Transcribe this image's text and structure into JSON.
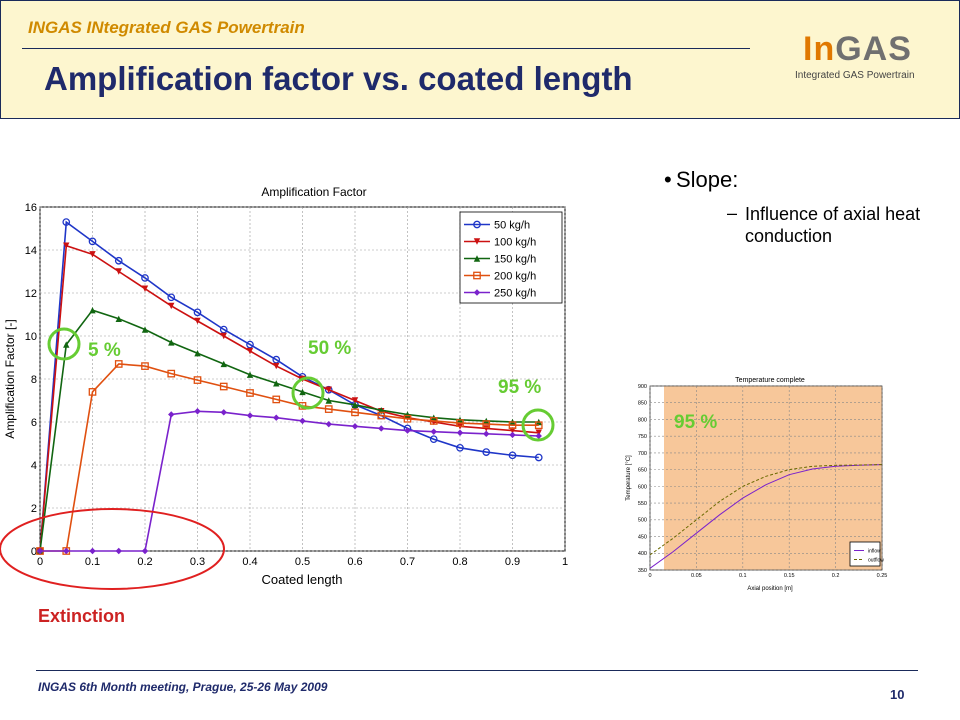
{
  "header": {
    "project": "INGAS INtegrated GAS Powertrain",
    "title": "Amplification factor vs. coated length",
    "logo_in": "In",
    "logo_gas": "GAS",
    "logo_sub": "Integrated GAS Powertrain"
  },
  "bullets": {
    "main": "Slope:",
    "sub": "Influence of axial heat conduction"
  },
  "annotations": {
    "five": "5 %",
    "fifty": "50 %",
    "ninetyfive": "95 %",
    "inset_ninetyfive": "95 %",
    "extinction": "Extinction"
  },
  "footer": {
    "meeting": "INGAS 6th Month meeting, Prague, 25-26 May 2009",
    "page": "10"
  },
  "colors": {
    "title": "#1f2a6b",
    "accent_green": "#66cc33",
    "extinction_red": "#cc2222",
    "inset_bg": "#f7c79a"
  },
  "chart_data": [
    {
      "type": "line",
      "title": "Amplification Factor",
      "xlabel": "Coated length",
      "ylabel": "Amplification Factor [-]",
      "xlim": [
        0,
        1
      ],
      "ylim": [
        0,
        16
      ],
      "xticks": [
        "0",
        "0.1",
        "0.2",
        "0.3",
        "0.4",
        "0.5",
        "0.6",
        "0.7",
        "0.8",
        "0.9",
        "1"
      ],
      "yticks": [
        "0",
        "2",
        "4",
        "6",
        "8",
        "10",
        "12",
        "14",
        "16"
      ],
      "grid": true,
      "legend": "top-right",
      "series": [
        {
          "name": "50 kg/h",
          "color": "#1f36c8",
          "marker": "circle",
          "x": [
            0,
            0.05,
            0.1,
            0.15,
            0.2,
            0.25,
            0.3,
            0.35,
            0.4,
            0.45,
            0.5,
            0.55,
            0.6,
            0.65,
            0.7,
            0.75,
            0.8,
            0.85,
            0.9,
            0.95
          ],
          "y": [
            0,
            15.3,
            14.4,
            13.5,
            12.7,
            11.8,
            11.1,
            10.3,
            9.6,
            8.9,
            8.1,
            7.5,
            6.8,
            6.3,
            5.7,
            5.2,
            4.8,
            4.6,
            4.45,
            4.35
          ]
        },
        {
          "name": "100 kg/h",
          "color": "#cc1111",
          "marker": "triangle-down",
          "x": [
            0,
            0.05,
            0.1,
            0.15,
            0.2,
            0.25,
            0.3,
            0.35,
            0.4,
            0.45,
            0.5,
            0.55,
            0.6,
            0.65,
            0.7,
            0.75,
            0.8,
            0.85,
            0.9,
            0.95
          ],
          "y": [
            0,
            14.2,
            13.8,
            13.0,
            12.2,
            11.4,
            10.7,
            10.0,
            9.3,
            8.6,
            8.0,
            7.5,
            7.0,
            6.5,
            6.2,
            6.0,
            5.8,
            5.7,
            5.6,
            5.5
          ]
        },
        {
          "name": "150 kg/h",
          "color": "#116611",
          "marker": "triangle-up",
          "x": [
            0,
            0.05,
            0.1,
            0.15,
            0.2,
            0.25,
            0.3,
            0.35,
            0.4,
            0.45,
            0.5,
            0.55,
            0.6,
            0.65,
            0.7,
            0.75,
            0.8,
            0.85,
            0.9,
            0.95
          ],
          "y": [
            0,
            9.6,
            11.2,
            10.8,
            10.3,
            9.7,
            9.2,
            8.7,
            8.2,
            7.8,
            7.4,
            7.0,
            6.8,
            6.55,
            6.35,
            6.2,
            6.1,
            6.05,
            6.0,
            6.0
          ]
        },
        {
          "name": "200 kg/h",
          "color": "#e05010",
          "marker": "square",
          "x": [
            0,
            0.05,
            0.1,
            0.15,
            0.2,
            0.25,
            0.3,
            0.35,
            0.4,
            0.45,
            0.5,
            0.55,
            0.6,
            0.65,
            0.7,
            0.75,
            0.8,
            0.85,
            0.9,
            0.95
          ],
          "y": [
            0,
            0,
            7.4,
            8.7,
            8.6,
            8.25,
            7.95,
            7.65,
            7.35,
            7.05,
            6.75,
            6.6,
            6.45,
            6.3,
            6.15,
            6.05,
            5.95,
            5.9,
            5.85,
            5.85
          ]
        },
        {
          "name": "250 kg/h",
          "color": "#7a22cc",
          "marker": "diamond",
          "x": [
            0,
            0.05,
            0.1,
            0.15,
            0.2,
            0.25,
            0.3,
            0.35,
            0.4,
            0.45,
            0.5,
            0.55,
            0.6,
            0.65,
            0.7,
            0.75,
            0.8,
            0.85,
            0.9,
            0.95
          ],
          "y": [
            0,
            0,
            0,
            0,
            0,
            6.35,
            6.5,
            6.45,
            6.3,
            6.2,
            6.05,
            5.9,
            5.8,
            5.7,
            5.6,
            5.55,
            5.5,
            5.45,
            5.4,
            5.35
          ]
        }
      ]
    },
    {
      "type": "line",
      "title": "Temperature complete",
      "xlabel": "Axial position [m]",
      "ylabel": "Temperature [°C]",
      "xlim": [
        0,
        0.25
      ],
      "ylim": [
        350,
        900
      ],
      "xticks": [
        "0",
        "0.05",
        "0.1",
        "0.15",
        "0.2",
        "0.25"
      ],
      "yticks": [
        "350",
        "400",
        "450",
        "500",
        "550",
        "600",
        "650",
        "700",
        "750",
        "800",
        "850",
        "900"
      ],
      "grid": true,
      "legend": "bottom-right",
      "series": [
        {
          "name": "inflow",
          "color": "#7a22cc",
          "dash": "solid",
          "x": [
            0,
            0.025,
            0.05,
            0.075,
            0.1,
            0.125,
            0.15,
            0.175,
            0.2,
            0.225,
            0.25
          ],
          "y": [
            355,
            405,
            460,
            515,
            565,
            605,
            635,
            652,
            660,
            663,
            665
          ]
        },
        {
          "name": "outflow",
          "color": "#6a6a00",
          "dash": "dashed",
          "x": [
            0,
            0.025,
            0.05,
            0.075,
            0.1,
            0.125,
            0.15,
            0.175,
            0.2,
            0.225,
            0.25
          ],
          "y": [
            395,
            445,
            500,
            555,
            600,
            630,
            650,
            660,
            663,
            664,
            665
          ]
        }
      ]
    }
  ]
}
